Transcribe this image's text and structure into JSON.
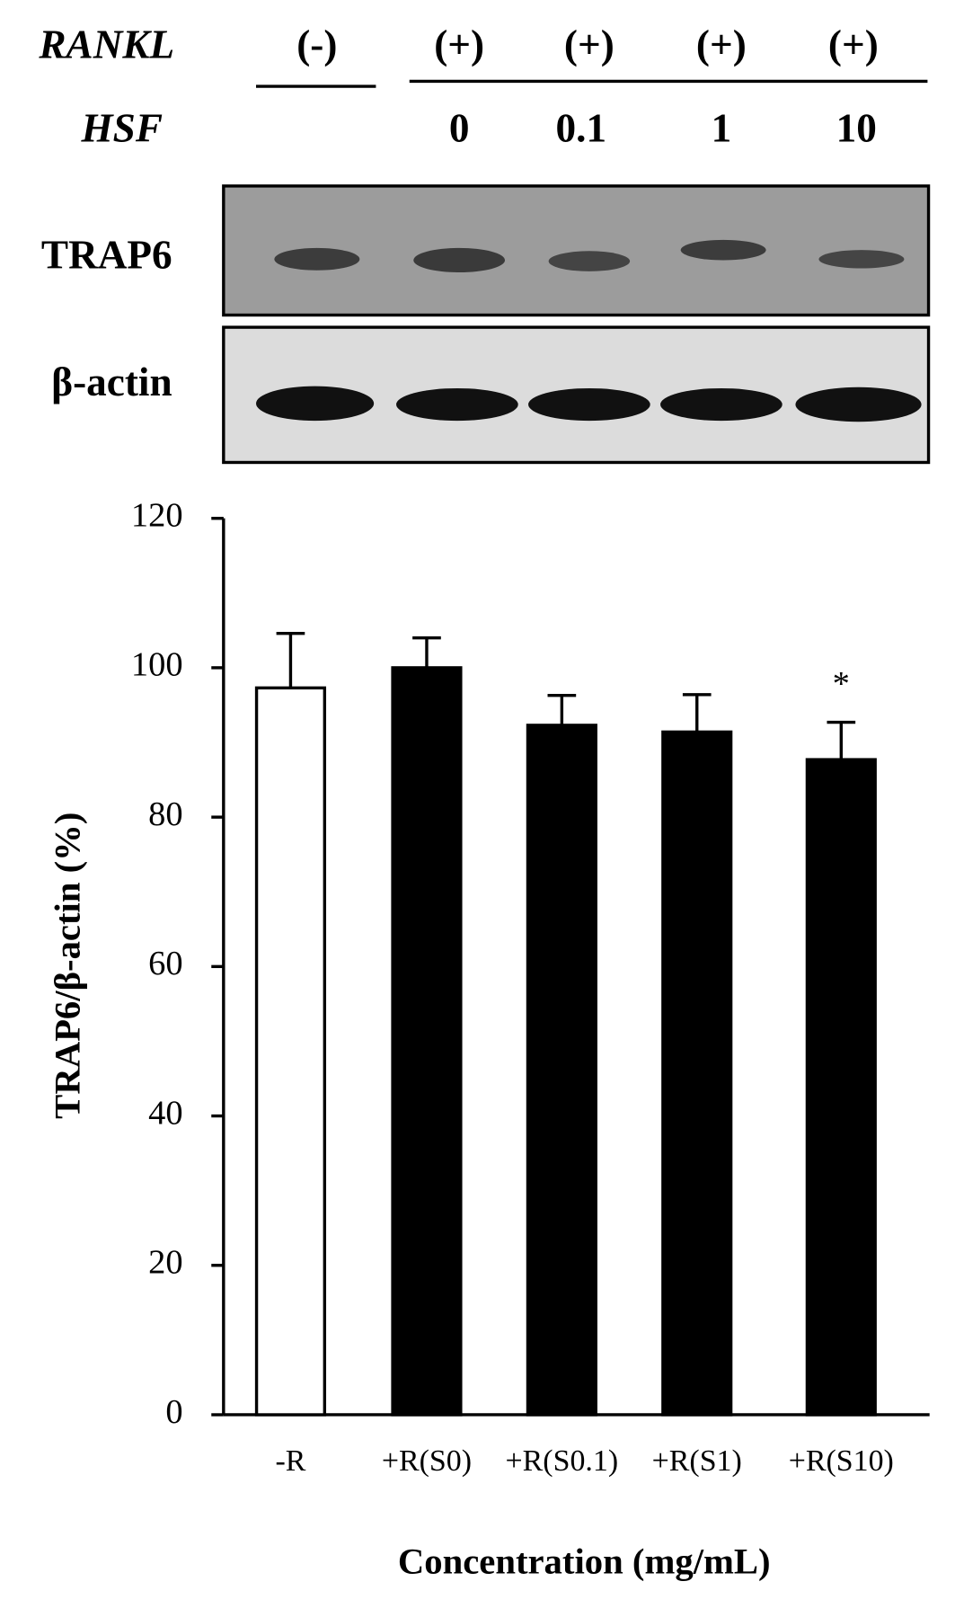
{
  "blot": {
    "row_labels": [
      "RANKL",
      "HSF"
    ],
    "rankl": [
      "(-)",
      "(+)",
      "(+)",
      "(+)",
      "(+)"
    ],
    "hsf": [
      "0",
      "0.1",
      "1",
      "10"
    ],
    "bands": [
      "TRAP6",
      "β-actin"
    ]
  },
  "chart_data": {
    "type": "bar",
    "y_label": "TRAP6/β-actin (%)",
    "x_label": "Concentration (mg/mL)",
    "categories": [
      "-R",
      "+R(S0)",
      "+R(S0.1)",
      "+R(S1)",
      "+R(S10)"
    ],
    "values": [
      97.3,
      100,
      92.3,
      91.4,
      87.7
    ],
    "errors": [
      7.3,
      4,
      4,
      5,
      5
    ],
    "colors": [
      "#ffffff",
      "#000000",
      "#000000",
      "#000000",
      "#000000"
    ],
    "ylim": [
      0,
      120
    ],
    "yticks": [
      0,
      20,
      40,
      60,
      80,
      100,
      120
    ],
    "annotations": [
      {
        "text": "*",
        "index": 4
      }
    ]
  }
}
